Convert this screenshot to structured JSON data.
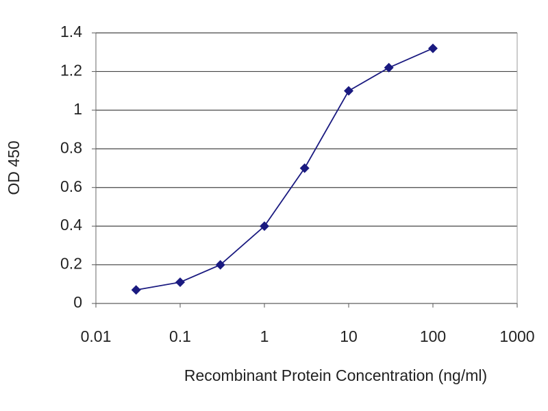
{
  "chart_data": {
    "type": "line",
    "xlabel": "Recombinant Protein Concentration (ng/ml)",
    "ylabel": "OD 450",
    "x": [
      0.03,
      0.1,
      0.3,
      1,
      3,
      10,
      30,
      100
    ],
    "series": [
      {
        "color": "#1a1a80",
        "values": [
          0.07,
          0.11,
          0.2,
          0.4,
          0.7,
          1.1,
          1.22,
          1.32
        ]
      }
    ],
    "xscale": "log",
    "xlim": [
      0.01,
      1000
    ],
    "xticks": [
      0.01,
      0.1,
      1,
      10,
      100,
      1000
    ],
    "ylim": [
      0,
      1.4
    ],
    "yticks": [
      0,
      0.2,
      0.4,
      0.6,
      0.8,
      1,
      1.2,
      1.4
    ],
    "grid": true
  }
}
